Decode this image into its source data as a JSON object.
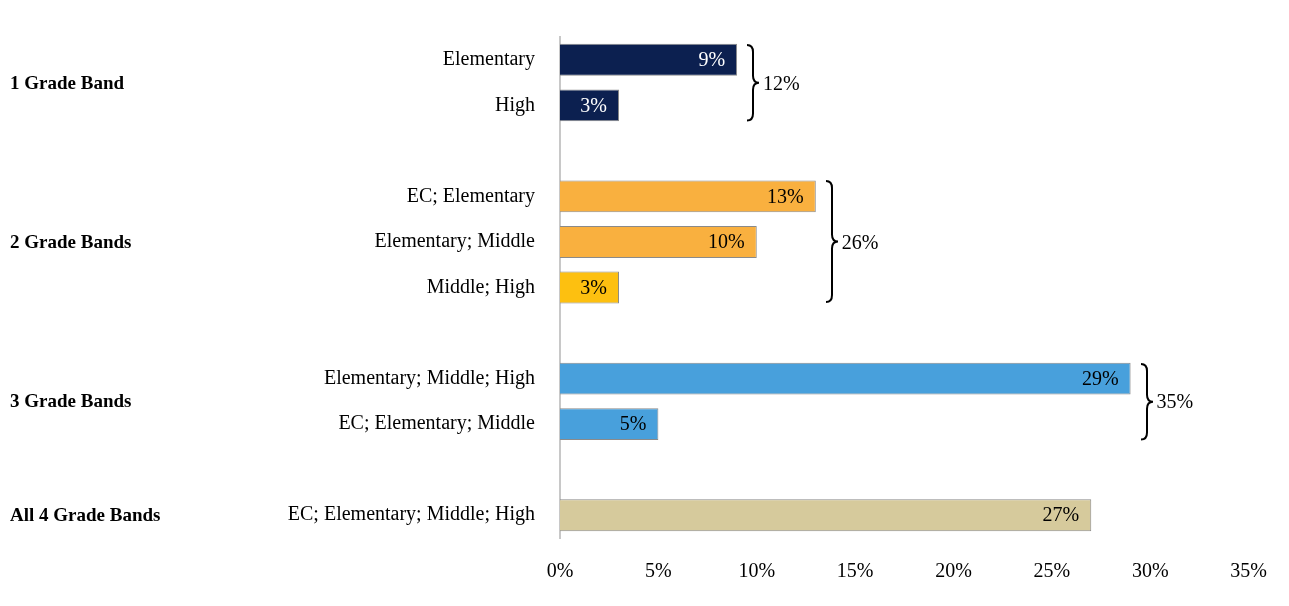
{
  "chart_data": {
    "type": "bar",
    "orientation": "horizontal",
    "categories": [
      "Elementary",
      "High",
      null,
      "EC; Elementary",
      "Elementary; Middle",
      "Middle; High",
      null,
      "Elementary; Middle; High",
      "EC; Elementary; Middle",
      null,
      "EC; Elementary; Middle; High"
    ],
    "values": [
      9,
      3,
      null,
      13,
      10,
      3,
      null,
      29,
      5,
      null,
      27
    ],
    "value_labels": [
      "9%",
      "3%",
      null,
      "13%",
      "10%",
      "3%",
      null,
      "29%",
      "5%",
      null,
      "27%"
    ],
    "colors": [
      "#0c2050",
      "#0c2050",
      null,
      "#f9b03f",
      "#f9b03f",
      "#fdc010",
      null,
      "#48a0dc",
      "#48a0dc",
      null,
      "#d6ca9c"
    ],
    "xlim": [
      0,
      35
    ],
    "xticks": [
      {
        "value": 0,
        "label": "0%"
      },
      {
        "value": 5,
        "label": "5%"
      },
      {
        "value": 10,
        "label": "10%"
      },
      {
        "value": 15,
        "label": "15%"
      },
      {
        "value": 20,
        "label": "20%"
      },
      {
        "value": 25,
        "label": "25%"
      },
      {
        "value": 30,
        "label": "30%"
      },
      {
        "value": 35,
        "label": "35%"
      }
    ],
    "grid": false,
    "legend": false,
    "annotations": [
      "1 Grade Band",
      "2 Grade Bands",
      "3 Grade Bands",
      "All 4 Grade Bands",
      "12%",
      "26%",
      "35%"
    ]
  }
}
